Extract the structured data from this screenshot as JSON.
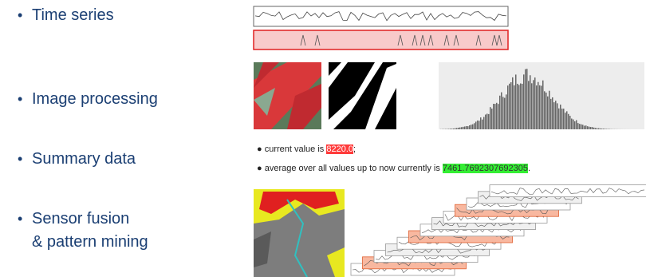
{
  "bullets": [
    "Time series",
    "Image processing",
    "Summary data",
    "Sensor fusion",
    "& pattern mining"
  ],
  "summary": {
    "line1": {
      "text": "current value is",
      "value": "8220.0",
      "after": ";"
    },
    "line2": {
      "text": "average over all values up to now currently is",
      "value": "7461.7692307692305",
      "after": "."
    }
  }
}
